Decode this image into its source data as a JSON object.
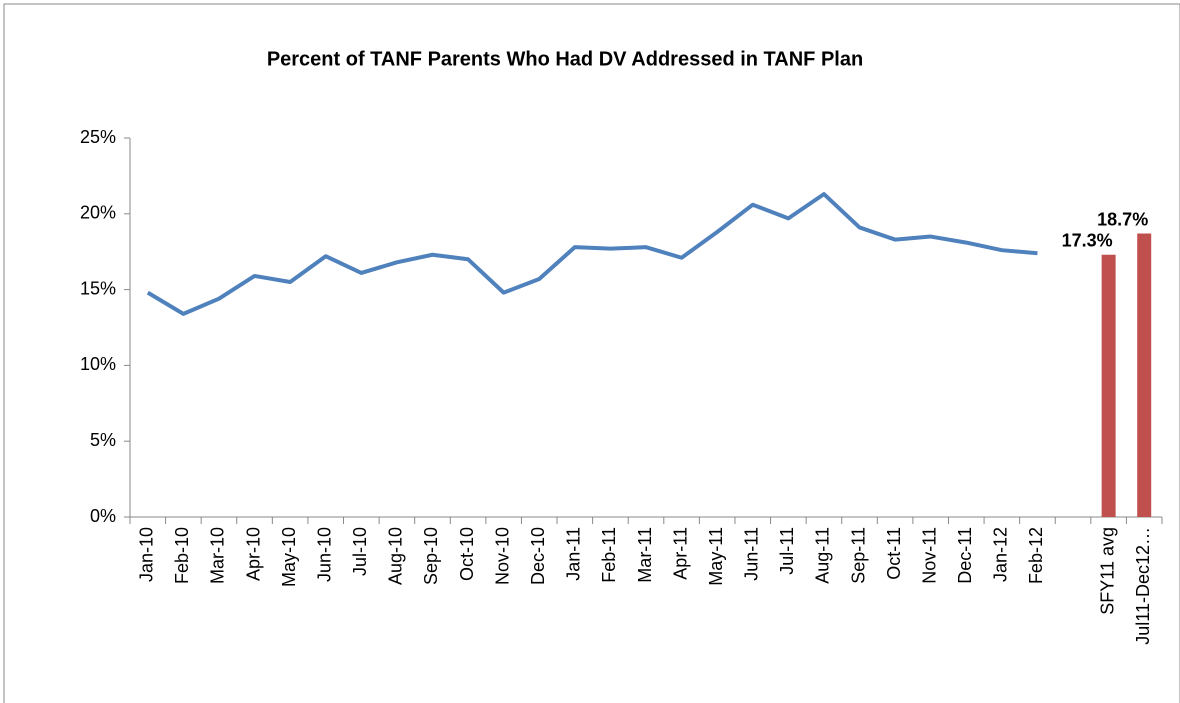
{
  "chart_data": {
    "type": "combo",
    "title": "Percent of  TANF Parents Who Had DV Addressed in TANF Plan",
    "categories": [
      "Jan-10",
      "Feb-10",
      "Mar-10",
      "Apr-10",
      "May-10",
      "Jun-10",
      "Jul-10",
      "Aug-10",
      "Sep-10",
      "Oct-10",
      "Nov-10",
      "Dec-10",
      "Jan-11",
      "Feb-11",
      "Mar-11",
      "Apr-11",
      "May-11",
      "Jun-11",
      "Jul-11",
      "Aug-11",
      "Sep-11",
      "Oct-11",
      "Nov-11",
      "Dec-11",
      "Jan-12",
      "Feb-12",
      null,
      "SFY11 avg",
      "Jul11-Dec12…"
    ],
    "series": [
      {
        "type": "line",
        "color": "#4f81bd",
        "values": [
          14.8,
          13.4,
          14.4,
          15.9,
          15.5,
          17.2,
          16.1,
          16.8,
          17.3,
          17.0,
          14.8,
          15.7,
          17.8,
          17.7,
          17.8,
          17.1,
          18.8,
          20.6,
          19.7,
          21.3,
          19.1,
          18.3,
          18.5,
          18.1,
          17.6,
          17.4,
          null,
          null,
          null
        ]
      },
      {
        "type": "bar",
        "color": "#c0504d",
        "values": [
          null,
          null,
          null,
          null,
          null,
          null,
          null,
          null,
          null,
          null,
          null,
          null,
          null,
          null,
          null,
          null,
          null,
          null,
          null,
          null,
          null,
          null,
          null,
          null,
          null,
          null,
          null,
          17.3,
          18.7
        ],
        "value_labels": [
          null,
          null,
          null,
          null,
          null,
          null,
          null,
          null,
          null,
          null,
          null,
          null,
          null,
          null,
          null,
          null,
          null,
          null,
          null,
          null,
          null,
          null,
          null,
          null,
          null,
          null,
          null,
          "17.3%",
          "18.7%"
        ]
      }
    ],
    "ylim": [
      0,
      25
    ],
    "yticks": [
      {
        "value": 0,
        "label": "0%"
      },
      {
        "value": 5,
        "label": "5%"
      },
      {
        "value": 10,
        "label": "10%"
      },
      {
        "value": 15,
        "label": "15%"
      },
      {
        "value": 20,
        "label": "20%"
      },
      {
        "value": 25,
        "label": "25%"
      }
    ],
    "grid": false
  }
}
